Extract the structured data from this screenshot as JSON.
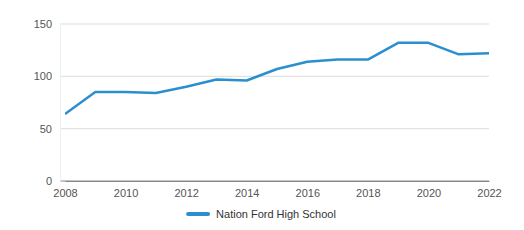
{
  "chart_data": {
    "type": "line",
    "x": [
      2008,
      2009,
      2010,
      2011,
      2012,
      2013,
      2014,
      2015,
      2016,
      2017,
      2018,
      2019,
      2020,
      2021,
      2022
    ],
    "series": [
      {
        "name": "Nation Ford High School",
        "color": "#2b8fcf",
        "values": [
          64,
          85,
          85,
          84,
          90,
          97,
          96,
          107,
          114,
          116,
          116,
          132,
          132,
          121,
          122
        ]
      }
    ],
    "xlim": [
      2008,
      2022
    ],
    "xticks": [
      2008,
      2010,
      2012,
      2014,
      2016,
      2018,
      2020,
      2022
    ],
    "ylim": [
      0,
      150
    ],
    "yticks": [
      0,
      50,
      100,
      150
    ],
    "grid": true,
    "legend": "bottom"
  }
}
